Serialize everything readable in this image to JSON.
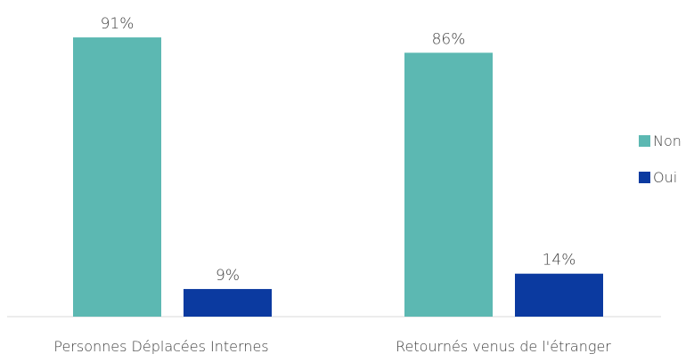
{
  "chart_data": {
    "type": "bar",
    "title": "",
    "xlabel": "",
    "ylabel": "",
    "categories": [
      "Personnes Déplacées Internes",
      "Retournés venus de l'étranger"
    ],
    "series": [
      {
        "name": "Non",
        "color": "#5cb8b2",
        "values": [
          91,
          86
        ],
        "labels": [
          "91%",
          "86%"
        ]
      },
      {
        "name": "Oui",
        "color": "#0b3aa0",
        "values": [
          9,
          14
        ],
        "labels": [
          "9%",
          "14%"
        ]
      }
    ],
    "ylim": [
      0,
      100
    ],
    "grid": false,
    "legend": "right"
  }
}
